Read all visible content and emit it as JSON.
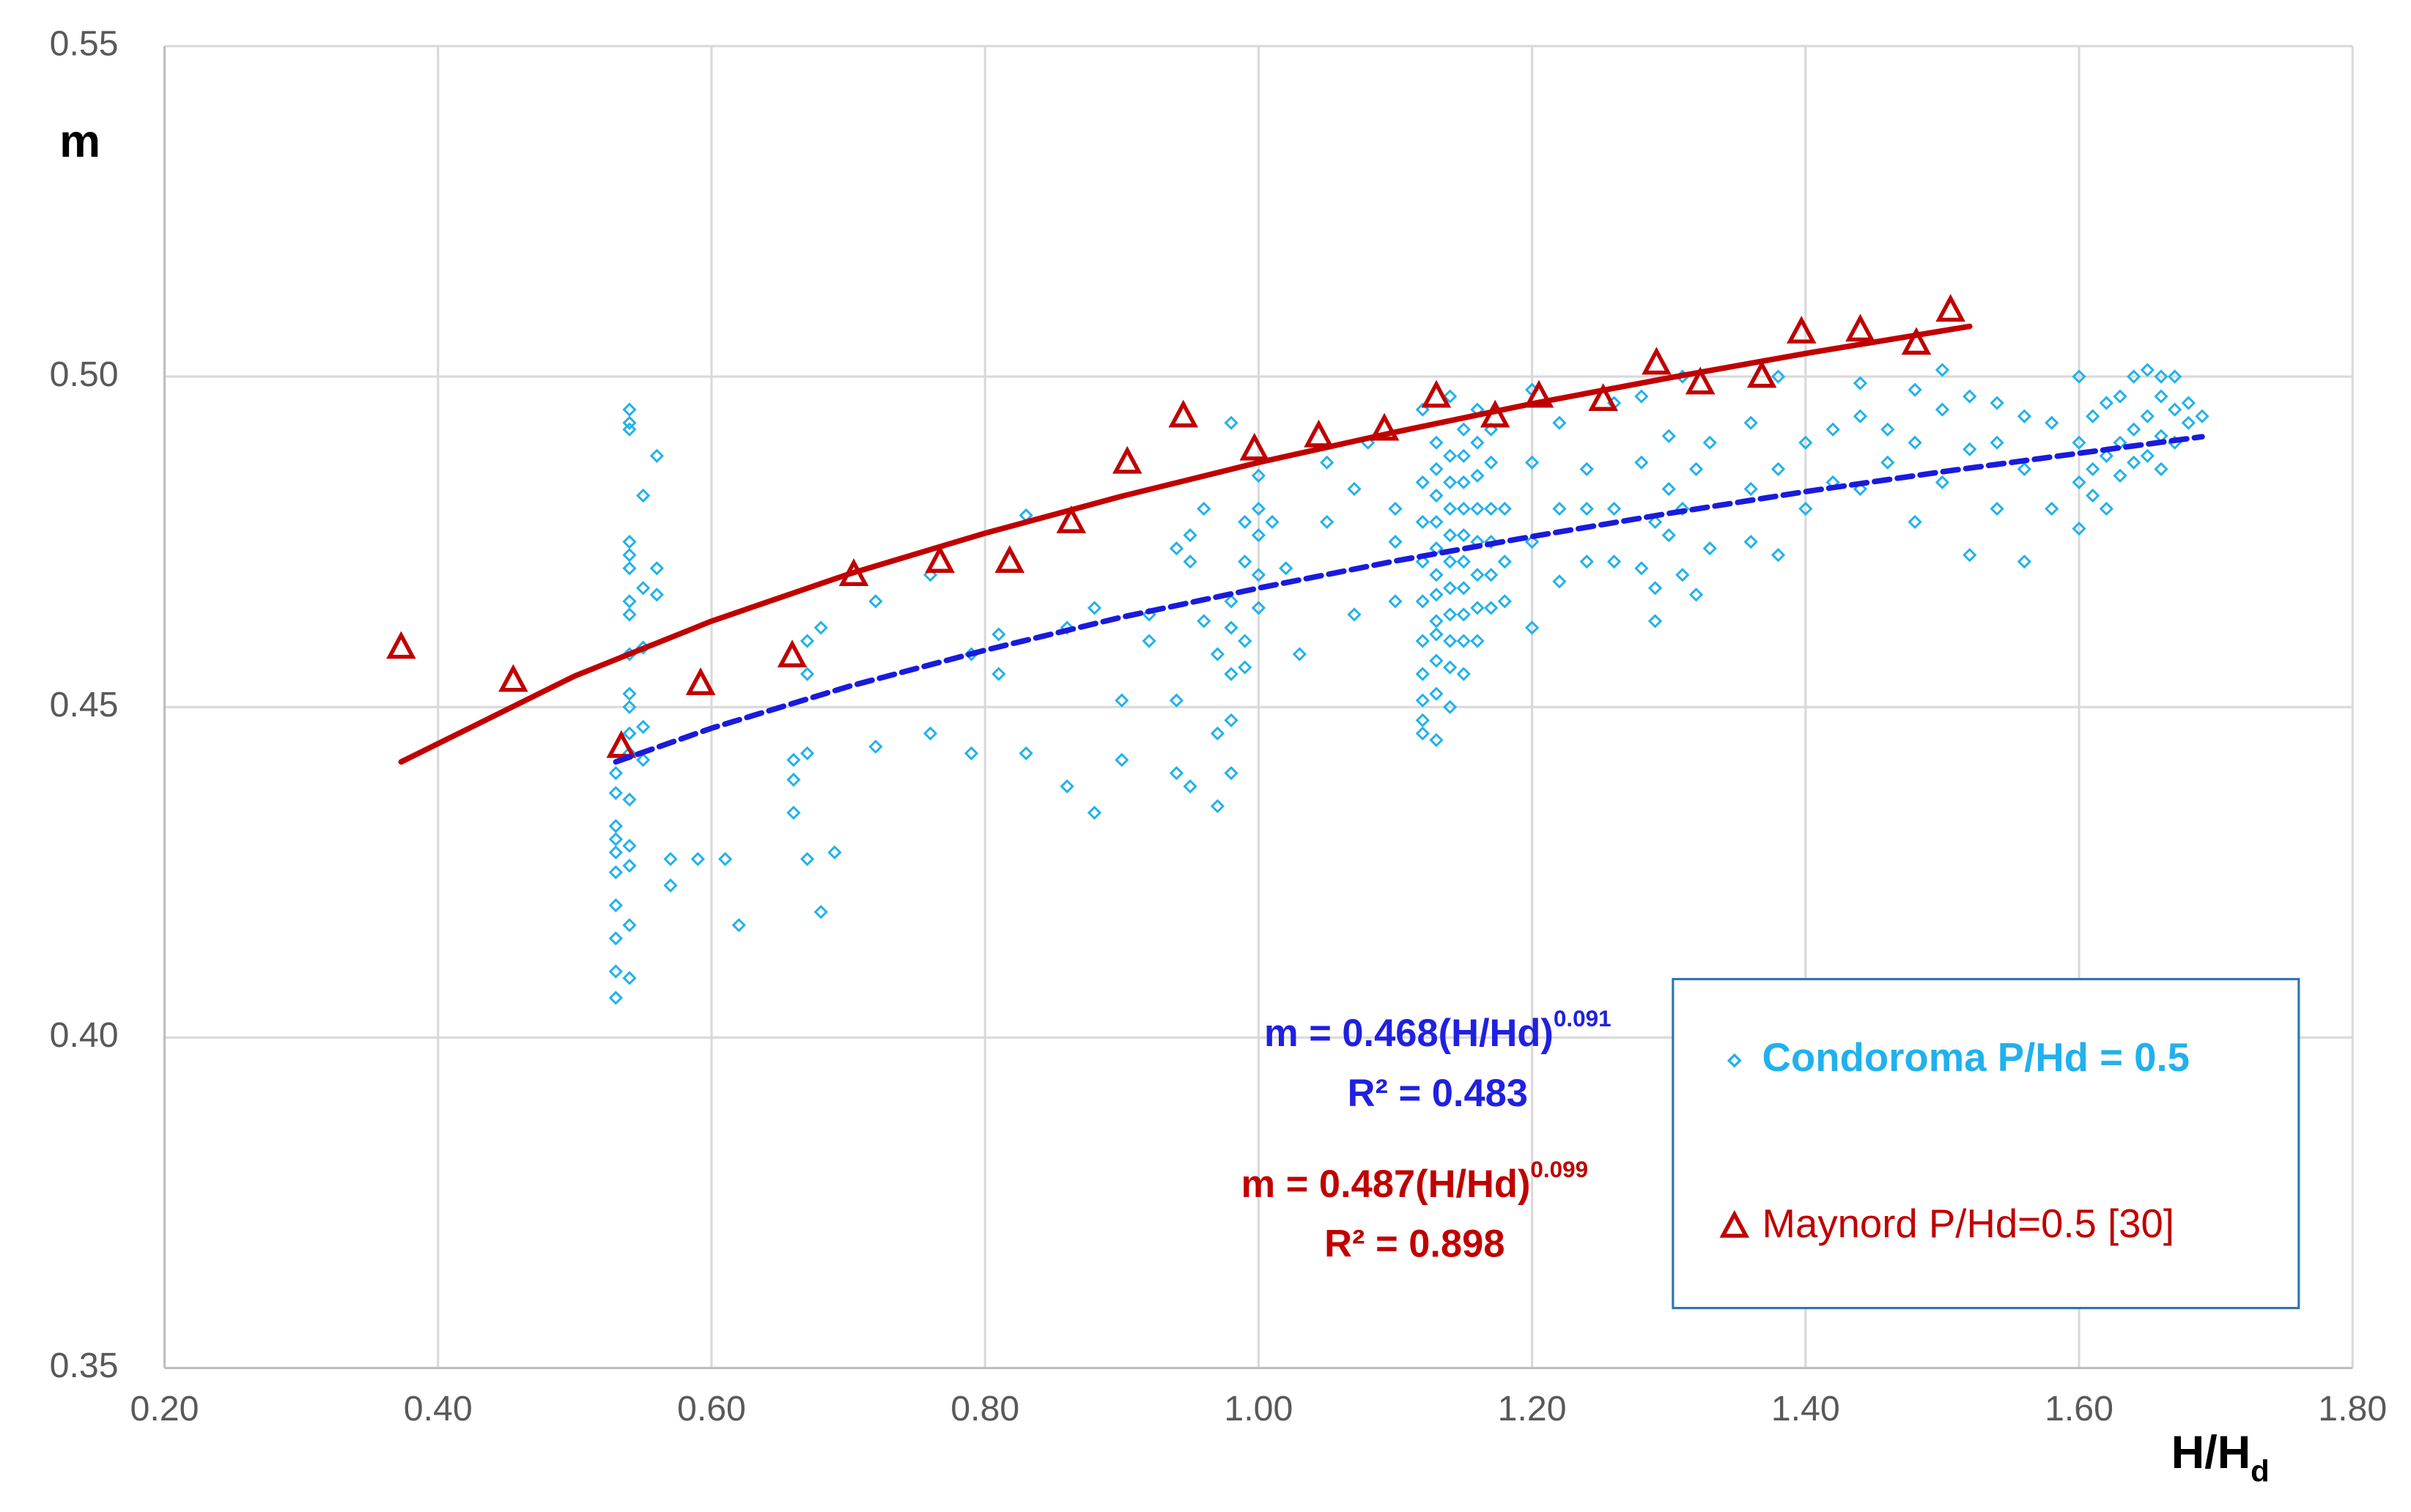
{
  "chart_data": {
    "type": "scatter",
    "x_label": {
      "text": "H/H",
      "sub": "d"
    },
    "y_label": "m",
    "xlim": [
      0.2,
      1.8
    ],
    "ylim": [
      0.35,
      0.55
    ],
    "xticks": [
      {
        "value": 0.2,
        "label": "0.20"
      },
      {
        "value": 0.4,
        "label": "0.40"
      },
      {
        "value": 0.6,
        "label": "0.60"
      },
      {
        "value": 0.8,
        "label": "0.80"
      },
      {
        "value": 1.0,
        "label": "1.00"
      },
      {
        "value": 1.2,
        "label": "1.20"
      },
      {
        "value": 1.4,
        "label": "1.40"
      },
      {
        "value": 1.6,
        "label": "1.60"
      },
      {
        "value": 1.8,
        "label": "1.80"
      }
    ],
    "yticks": [
      0.35,
      {
        "value": 0.4,
        "label": "0.40"
      },
      0.45,
      {
        "value": 0.5,
        "label": "0.50"
      },
      0.55
    ],
    "grid": true,
    "series": [
      {
        "name": "Condoroma P/Hd = 0.5",
        "color": "#21b1ec",
        "marker": "diamond",
        "x": [
          0.53,
          0.53,
          0.53,
          0.53,
          0.53,
          0.53,
          0.53,
          0.53,
          0.53,
          0.53,
          0.54,
          0.54,
          0.54,
          0.54,
          0.54,
          0.54,
          0.54,
          0.54,
          0.54,
          0.54,
          0.54,
          0.54,
          0.54,
          0.54,
          0.54,
          0.54,
          0.54,
          0.54,
          0.55,
          0.55,
          0.55,
          0.55,
          0.55,
          0.56,
          0.56,
          0.56,
          0.57,
          0.57,
          0.59,
          0.61,
          0.62,
          0.66,
          0.66,
          0.66,
          0.67,
          0.67,
          0.67,
          0.67,
          0.68,
          0.68,
          0.69,
          0.72,
          0.72,
          0.76,
          0.76,
          0.79,
          0.79,
          0.81,
          0.81,
          0.83,
          0.83,
          0.86,
          0.86,
          0.88,
          0.88,
          0.9,
          0.9,
          0.92,
          0.92,
          0.94,
          0.94,
          0.94,
          0.95,
          0.95,
          0.95,
          0.96,
          0.96,
          0.97,
          0.97,
          0.97,
          0.98,
          0.98,
          0.98,
          0.98,
          0.98,
          0.98,
          0.99,
          0.99,
          0.99,
          0.99,
          1.0,
          1.0,
          1.0,
          1.0,
          1.0,
          1.01,
          1.02,
          1.03,
          1.05,
          1.05,
          1.07,
          1.07,
          1.08,
          1.1,
          1.1,
          1.1,
          1.12,
          1.12,
          1.12,
          1.12,
          1.12,
          1.12,
          1.12,
          1.12,
          1.12,
          1.12,
          1.13,
          1.13,
          1.13,
          1.13,
          1.13,
          1.13,
          1.13,
          1.13,
          1.13,
          1.13,
          1.13,
          1.13,
          1.14,
          1.14,
          1.14,
          1.14,
          1.14,
          1.14,
          1.14,
          1.14,
          1.14,
          1.14,
          1.14,
          1.15,
          1.15,
          1.15,
          1.15,
          1.15,
          1.15,
          1.15,
          1.15,
          1.15,
          1.15,
          1.16,
          1.16,
          1.16,
          1.16,
          1.16,
          1.16,
          1.16,
          1.16,
          1.17,
          1.17,
          1.17,
          1.17,
          1.17,
          1.17,
          1.18,
          1.18,
          1.18,
          1.2,
          1.2,
          1.2,
          1.2,
          1.22,
          1.22,
          1.22,
          1.24,
          1.24,
          1.24,
          1.26,
          1.26,
          1.26,
          1.28,
          1.28,
          1.28,
          1.29,
          1.29,
          1.29,
          1.3,
          1.3,
          1.3,
          1.31,
          1.31,
          1.31,
          1.32,
          1.32,
          1.33,
          1.33,
          1.36,
          1.36,
          1.36,
          1.38,
          1.38,
          1.38,
          1.4,
          1.4,
          1.42,
          1.42,
          1.44,
          1.44,
          1.44,
          1.46,
          1.46,
          1.48,
          1.48,
          1.48,
          1.5,
          1.5,
          1.5,
          1.52,
          1.52,
          1.52,
          1.54,
          1.54,
          1.54,
          1.56,
          1.56,
          1.56,
          1.58,
          1.58,
          1.6,
          1.6,
          1.6,
          1.6,
          1.61,
          1.61,
          1.61,
          1.62,
          1.62,
          1.62,
          1.63,
          1.63,
          1.63,
          1.64,
          1.64,
          1.64,
          1.65,
          1.65,
          1.65,
          1.66,
          1.66,
          1.66,
          1.66,
          1.67,
          1.67,
          1.67,
          1.68,
          1.68,
          1.69
        ],
        "values": [
          0.406,
          0.41,
          0.415,
          0.42,
          0.425,
          0.428,
          0.43,
          0.432,
          0.437,
          0.44,
          0.409,
          0.417,
          0.426,
          0.429,
          0.436,
          0.443,
          0.446,
          0.45,
          0.452,
          0.458,
          0.464,
          0.466,
          0.471,
          0.473,
          0.475,
          0.492,
          0.493,
          0.495,
          0.442,
          0.447,
          0.459,
          0.468,
          0.482,
          0.471,
          0.467,
          0.488,
          0.427,
          0.423,
          0.427,
          0.427,
          0.417,
          0.434,
          0.439,
          0.442,
          0.443,
          0.427,
          0.455,
          0.46,
          0.419,
          0.462,
          0.428,
          0.444,
          0.466,
          0.446,
          0.47,
          0.443,
          0.458,
          0.455,
          0.461,
          0.443,
          0.479,
          0.438,
          0.462,
          0.434,
          0.465,
          0.451,
          0.442,
          0.46,
          0.464,
          0.474,
          0.451,
          0.44,
          0.476,
          0.472,
          0.438,
          0.48,
          0.463,
          0.435,
          0.446,
          0.458,
          0.44,
          0.448,
          0.455,
          0.462,
          0.466,
          0.493,
          0.456,
          0.46,
          0.478,
          0.472,
          0.47,
          0.476,
          0.48,
          0.465,
          0.485,
          0.478,
          0.471,
          0.458,
          0.478,
          0.487,
          0.464,
          0.483,
          0.49,
          0.466,
          0.475,
          0.48,
          0.446,
          0.448,
          0.451,
          0.455,
          0.46,
          0.466,
          0.472,
          0.478,
          0.484,
          0.495,
          0.445,
          0.452,
          0.457,
          0.461,
          0.463,
          0.467,
          0.47,
          0.474,
          0.478,
          0.482,
          0.486,
          0.49,
          0.45,
          0.456,
          0.46,
          0.464,
          0.468,
          0.472,
          0.476,
          0.48,
          0.484,
          0.488,
          0.497,
          0.455,
          0.46,
          0.464,
          0.468,
          0.472,
          0.476,
          0.48,
          0.484,
          0.488,
          0.492,
          0.46,
          0.465,
          0.47,
          0.475,
          0.48,
          0.485,
          0.49,
          0.495,
          0.465,
          0.47,
          0.475,
          0.48,
          0.487,
          0.492,
          0.466,
          0.472,
          0.48,
          0.462,
          0.475,
          0.487,
          0.498,
          0.469,
          0.48,
          0.493,
          0.472,
          0.48,
          0.486,
          0.472,
          0.48,
          0.496,
          0.471,
          0.487,
          0.497,
          0.463,
          0.468,
          0.478,
          0.476,
          0.483,
          0.491,
          0.47,
          0.48,
          0.5,
          0.467,
          0.486,
          0.474,
          0.49,
          0.475,
          0.483,
          0.493,
          0.473,
          0.486,
          0.5,
          0.48,
          0.49,
          0.484,
          0.492,
          0.494,
          0.499,
          0.483,
          0.487,
          0.492,
          0.478,
          0.49,
          0.498,
          0.484,
          0.495,
          0.501,
          0.473,
          0.489,
          0.497,
          0.48,
          0.49,
          0.496,
          0.472,
          0.486,
          0.494,
          0.48,
          0.493,
          0.477,
          0.484,
          0.49,
          0.5,
          0.482,
          0.486,
          0.494,
          0.48,
          0.488,
          0.496,
          0.485,
          0.49,
          0.497,
          0.487,
          0.492,
          0.5,
          0.488,
          0.494,
          0.501,
          0.486,
          0.491,
          0.497,
          0.5,
          0.49,
          0.495,
          0.5,
          0.493,
          0.496,
          0.494
        ]
      },
      {
        "name": "Maynord P/Hd=0.5 [30]",
        "color": "#c00000",
        "marker": "triangle",
        "x": [
          0.373,
          0.455,
          0.534,
          0.592,
          0.659,
          0.704,
          0.767,
          0.818,
          0.863,
          0.904,
          0.945,
          0.997,
          1.044,
          1.092,
          1.13,
          1.173,
          1.205,
          1.252,
          1.291,
          1.323,
          1.368,
          1.397,
          1.44,
          1.481,
          1.506
        ],
        "values": [
          0.459,
          0.454,
          0.444,
          0.4535,
          0.4577,
          0.47,
          0.472,
          0.472,
          0.478,
          0.487,
          0.494,
          0.489,
          0.491,
          0.492,
          0.497,
          0.494,
          0.497,
          0.4965,
          0.502,
          0.499,
          0.5,
          0.5067,
          0.507,
          0.505,
          0.51
        ]
      }
    ],
    "trendlines": [
      {
        "color": "#1a1adc",
        "style": "dashed",
        "x": [
          0.53,
          0.6,
          0.7,
          0.8,
          0.9,
          1.0,
          1.1,
          1.2,
          1.3,
          1.4,
          1.5,
          1.6,
          1.69
        ],
        "values": [
          0.4417,
          0.4468,
          0.4531,
          0.4586,
          0.4636,
          0.468,
          0.4721,
          0.4758,
          0.4793,
          0.4826,
          0.4856,
          0.4884,
          0.4909
        ]
      },
      {
        "color": "#c00000",
        "style": "solid",
        "x": [
          0.373,
          0.5,
          0.6,
          0.7,
          0.8,
          0.9,
          1.0,
          1.1,
          1.2,
          1.3,
          1.4,
          1.52
        ],
        "values": [
          0.4417,
          0.4547,
          0.463,
          0.4701,
          0.4763,
          0.4819,
          0.487,
          0.4916,
          0.4959,
          0.4998,
          0.5035,
          0.5076
        ]
      }
    ],
    "annotations": [
      {
        "text": "m = 0.468(H/Hd)",
        "sup": "0.091",
        "color": "#2020e0"
      },
      {
        "text": "R² = 0.483",
        "color": "#2020e0"
      },
      {
        "text": "m = 0.487(H/Hd)",
        "sup": "0.099",
        "color": "#c00000"
      },
      {
        "text": "R² = 0.898",
        "color": "#c00000"
      }
    ],
    "legend": "inside-lower-right"
  }
}
